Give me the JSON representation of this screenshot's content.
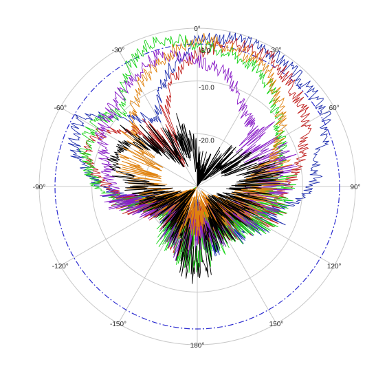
{
  "chart_data": {
    "type": "polar-line",
    "title": "",
    "angle_labels": [
      {
        "angle": 0,
        "text": "0°"
      },
      {
        "angle": 30,
        "text": "30°"
      },
      {
        "angle": 60,
        "text": "60°"
      },
      {
        "angle": 90,
        "text": "90°"
      },
      {
        "angle": 120,
        "text": "120°"
      },
      {
        "angle": 150,
        "text": "150°"
      },
      {
        "angle": 180,
        "text": "180°"
      },
      {
        "angle": -150,
        "text": "-150°"
      },
      {
        "angle": -120,
        "text": "-120°"
      },
      {
        "angle": -90,
        "text": "-90°"
      },
      {
        "angle": -60,
        "text": "-60°"
      },
      {
        "angle": -30,
        "text": "-30°"
      }
    ],
    "radial_labels": [
      {
        "value": -3.0,
        "text": "-3.0"
      },
      {
        "value": -10.0,
        "text": "-10.0"
      },
      {
        "value": -20.0,
        "text": "-20.0"
      }
    ],
    "radial_range_db": [
      -30,
      0
    ],
    "reference_ring_db": -3.0,
    "grid": true,
    "colors": {
      "grid": "#c8c8c8",
      "reference_ring": "#2b2bd0",
      "series": [
        "#1f2fae",
        "#c0201e",
        "#18d418",
        "#8a1ec8",
        "#e0820e",
        "#000000"
      ]
    },
    "series": [
      {
        "color": "#1f2fae",
        "points": [
          [
            -180,
            -24
          ],
          [
            -165,
            -22
          ],
          [
            -150,
            -23
          ],
          [
            -135,
            -25
          ],
          [
            -120,
            -24
          ],
          [
            -105,
            -20
          ],
          [
            -90,
            -12
          ],
          [
            -75,
            -6
          ],
          [
            -60,
            -4
          ],
          [
            -45,
            -12
          ],
          [
            -30,
            -15
          ],
          [
            -15,
            -8
          ],
          [
            0,
            -2
          ],
          [
            15,
            -1
          ],
          [
            30,
            -1
          ],
          [
            45,
            -2
          ],
          [
            60,
            -2
          ],
          [
            75,
            -6
          ],
          [
            90,
            -8
          ],
          [
            105,
            -14
          ],
          [
            120,
            -18
          ],
          [
            135,
            -20
          ],
          [
            150,
            -22
          ],
          [
            165,
            -21
          ],
          [
            180,
            -24
          ]
        ]
      },
      {
        "color": "#c0201e",
        "points": [
          [
            -180,
            -23
          ],
          [
            -165,
            -21
          ],
          [
            -150,
            -22
          ],
          [
            -135,
            -25
          ],
          [
            -120,
            -23
          ],
          [
            -105,
            -18
          ],
          [
            -90,
            -13
          ],
          [
            -75,
            -8
          ],
          [
            -60,
            -9
          ],
          [
            -45,
            -16
          ],
          [
            -30,
            -22
          ],
          [
            -15,
            -10
          ],
          [
            0,
            -5
          ],
          [
            15,
            -2
          ],
          [
            30,
            -2
          ],
          [
            45,
            -4
          ],
          [
            60,
            -6
          ],
          [
            75,
            -10
          ],
          [
            90,
            -13
          ],
          [
            105,
            -16
          ],
          [
            120,
            -19
          ],
          [
            135,
            -21
          ],
          [
            150,
            -22
          ],
          [
            165,
            -22
          ],
          [
            180,
            -23
          ]
        ]
      },
      {
        "color": "#18d418",
        "points": [
          [
            -180,
            -18
          ],
          [
            -165,
            -19
          ],
          [
            -150,
            -20
          ],
          [
            -135,
            -24
          ],
          [
            -120,
            -25
          ],
          [
            -105,
            -18
          ],
          [
            -90,
            -11
          ],
          [
            -75,
            -8
          ],
          [
            -60,
            -7
          ],
          [
            -45,
            -10
          ],
          [
            -30,
            -4
          ],
          [
            -15,
            -1
          ],
          [
            0,
            -3
          ],
          [
            15,
            -4
          ],
          [
            30,
            -5
          ],
          [
            45,
            -9
          ],
          [
            60,
            -12
          ],
          [
            75,
            -14
          ],
          [
            90,
            -16
          ],
          [
            105,
            -17
          ],
          [
            120,
            -18
          ],
          [
            135,
            -20
          ],
          [
            150,
            -22
          ],
          [
            165,
            -20
          ],
          [
            180,
            -18
          ]
        ]
      },
      {
        "color": "#8a1ec8",
        "points": [
          [
            -180,
            -22
          ],
          [
            -165,
            -20
          ],
          [
            -150,
            -22
          ],
          [
            -135,
            -24
          ],
          [
            -120,
            -23
          ],
          [
            -105,
            -17
          ],
          [
            -90,
            -14
          ],
          [
            -75,
            -12
          ],
          [
            -60,
            -9
          ],
          [
            -45,
            -8
          ],
          [
            -30,
            -6
          ],
          [
            -15,
            -4
          ],
          [
            0,
            -6
          ],
          [
            15,
            -8
          ],
          [
            30,
            -13
          ],
          [
            45,
            -15
          ],
          [
            60,
            -16
          ],
          [
            75,
            -15
          ],
          [
            90,
            -16
          ],
          [
            105,
            -18
          ],
          [
            120,
            -20
          ],
          [
            135,
            -22
          ],
          [
            150,
            -23
          ],
          [
            165,
            -21
          ],
          [
            180,
            -22
          ]
        ]
      },
      {
        "color": "#e0820e",
        "points": [
          [
            -180,
            -25
          ],
          [
            -165,
            -24
          ],
          [
            -150,
            -25
          ],
          [
            -135,
            -26
          ],
          [
            -120,
            -25
          ],
          [
            -105,
            -22
          ],
          [
            -90,
            -20
          ],
          [
            -75,
            -19
          ],
          [
            -60,
            -18
          ],
          [
            -45,
            -13
          ],
          [
            -30,
            -8
          ],
          [
            -15,
            -5
          ],
          [
            0,
            -2
          ],
          [
            15,
            -3
          ],
          [
            30,
            -4
          ],
          [
            45,
            -8
          ],
          [
            60,
            -12
          ],
          [
            75,
            -16
          ],
          [
            90,
            -18
          ],
          [
            105,
            -20
          ],
          [
            120,
            -22
          ],
          [
            135,
            -24
          ],
          [
            150,
            -24
          ],
          [
            165,
            -24
          ],
          [
            180,
            -25
          ]
        ]
      },
      {
        "color": "#000000",
        "points": [
          [
            -180,
            -15
          ],
          [
            -170,
            -17
          ],
          [
            -160,
            -22
          ],
          [
            -150,
            -24
          ],
          [
            -135,
            -25
          ],
          [
            -120,
            -24
          ],
          [
            -105,
            -22
          ],
          [
            -90,
            -20
          ],
          [
            -75,
            -13
          ],
          [
            -60,
            -14
          ],
          [
            -45,
            -18
          ],
          [
            -30,
            -22
          ],
          [
            -15,
            -20
          ],
          [
            0,
            -26
          ],
          [
            15,
            -28
          ],
          [
            30,
            -26
          ],
          [
            45,
            -24
          ],
          [
            60,
            -22
          ],
          [
            75,
            -18
          ],
          [
            90,
            -19
          ],
          [
            105,
            -21
          ],
          [
            120,
            -22
          ],
          [
            135,
            -23
          ],
          [
            150,
            -22
          ],
          [
            165,
            -20
          ],
          [
            180,
            -15
          ]
        ]
      }
    ]
  }
}
